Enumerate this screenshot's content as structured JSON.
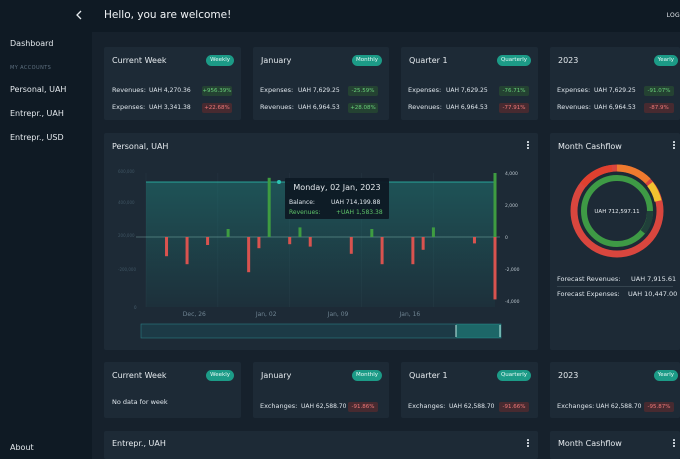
{
  "header": {
    "title": "Hello, you are welcome!",
    "logout": "LOG"
  },
  "sidebar": {
    "dashboard": "Dashboard",
    "section": "MY ACCOUNTS",
    "accounts": [
      "Personal, UAH",
      "Entrepr., UAH",
      "Entrepr., USD"
    ],
    "about": "About"
  },
  "summary_top": [
    {
      "title": "Current Week",
      "pill": "Weekly",
      "rows": [
        {
          "label": "Revenues:",
          "value": "UAH 4,270.36",
          "badge": "+956.39%",
          "dir": "up"
        },
        {
          "label": "Expenses:",
          "value": "UAH 3,341.38",
          "badge": "+22.68%",
          "dir": "down"
        }
      ]
    },
    {
      "title": "January",
      "pill": "Monthly",
      "rows": [
        {
          "label": "Expenses:",
          "value": "UAH 7,629.25",
          "badge": "-25.59%",
          "dir": "up"
        },
        {
          "label": "Revenues:",
          "value": "UAH 6,964.53",
          "badge": "+28.08%",
          "dir": "up"
        }
      ]
    },
    {
      "title": "Quarter 1",
      "pill": "Quarterly",
      "rows": [
        {
          "label": "Expenses:",
          "value": "UAH 7,629.25",
          "badge": "-76.71%",
          "dir": "up"
        },
        {
          "label": "Revenues:",
          "value": "UAH 6,964.53",
          "badge": "-77.91%",
          "dir": "down"
        }
      ]
    },
    {
      "title": "2023",
      "pill": "Yearly",
      "rows": [
        {
          "label": "Expenses:",
          "value": "UAH 7,629.25",
          "badge": "-91.07%",
          "dir": "up"
        },
        {
          "label": "Revenues:",
          "value": "UAH 6,964.53",
          "badge": "-87.9%",
          "dir": "down"
        }
      ]
    }
  ],
  "personal": {
    "title": "Personal, UAH",
    "tooltip": {
      "date": "Monday, 02 Jan, 2023",
      "balance_label": "Balance:",
      "balance_value": "UAH 714,199.88",
      "revenues_label": "Revenues:",
      "revenues_value": "+UAH 1,583.38"
    }
  },
  "chart_data": {
    "type": "bar",
    "title": "",
    "x_tick_labels": [
      "Dec, 26",
      "Jan, 02",
      "Jan, 09",
      "Jan, 16"
    ],
    "x_tick_index": [
      5,
      12,
      19,
      26
    ],
    "y_right_ticks": [
      "4,000",
      "2,000",
      "0",
      "-2,000",
      "-4,000"
    ],
    "y_right_range": [
      -4000,
      4000
    ],
    "y_left_ticks": [
      "600,000",
      "400,000",
      "200,000",
      "-200,000"
    ],
    "series": [
      {
        "name": "Revenues",
        "values": [
          0,
          0,
          0,
          0,
          0,
          0,
          0,
          0,
          500,
          0,
          0,
          0,
          3700,
          0,
          0,
          600,
          0,
          0,
          0,
          0,
          0,
          0,
          500,
          0,
          0,
          0,
          0,
          0,
          600,
          0,
          0,
          0,
          0,
          0,
          4000
        ]
      },
      {
        "name": "Expenses",
        "values": [
          0,
          0,
          -1200,
          0,
          -1700,
          0,
          -500,
          0,
          0,
          0,
          -2200,
          -700,
          0,
          0,
          -450,
          0,
          -600,
          0,
          0,
          0,
          -1050,
          0,
          0,
          -1700,
          0,
          0,
          -1700,
          -800,
          0,
          0,
          0,
          0,
          -400,
          0,
          -3900
        ]
      }
    ],
    "balance_approx": 714199.88,
    "colors": {
      "revenue": "#3e9c41",
      "expense": "#d9534f",
      "balance": "#1f9f93"
    }
  },
  "cashflow": {
    "title": "Month Cashflow",
    "center": "UAH 712,597.11",
    "forecast_revenues_label": "Forecast Revenues:",
    "forecast_revenues_value": "UAH 7,915.61",
    "forecast_expenses_label": "Forecast Expenses:",
    "forecast_expenses_value": "UAH 10,447.00"
  },
  "summary_bottom": [
    {
      "title": "Current Week",
      "pill": "Weekly",
      "nodata": "No data for week"
    },
    {
      "title": "January",
      "pill": "Monthly",
      "label": "Exchanges:",
      "value": "UAH 62,588.70",
      "badge": "-91.86%"
    },
    {
      "title": "Quarter 1",
      "pill": "Quarterly",
      "label": "Exchanges:",
      "value": "UAH 62,588.70",
      "badge": "-91.66%"
    },
    {
      "title": "2023",
      "pill": "Yearly",
      "label": "Exchanges:",
      "value": "UAH 62,588.70",
      "badge": "-95.87%"
    }
  ],
  "bottom": {
    "entrepr_title": "Entrepr., UAH",
    "cashflow_title": "Month Cashflow"
  }
}
